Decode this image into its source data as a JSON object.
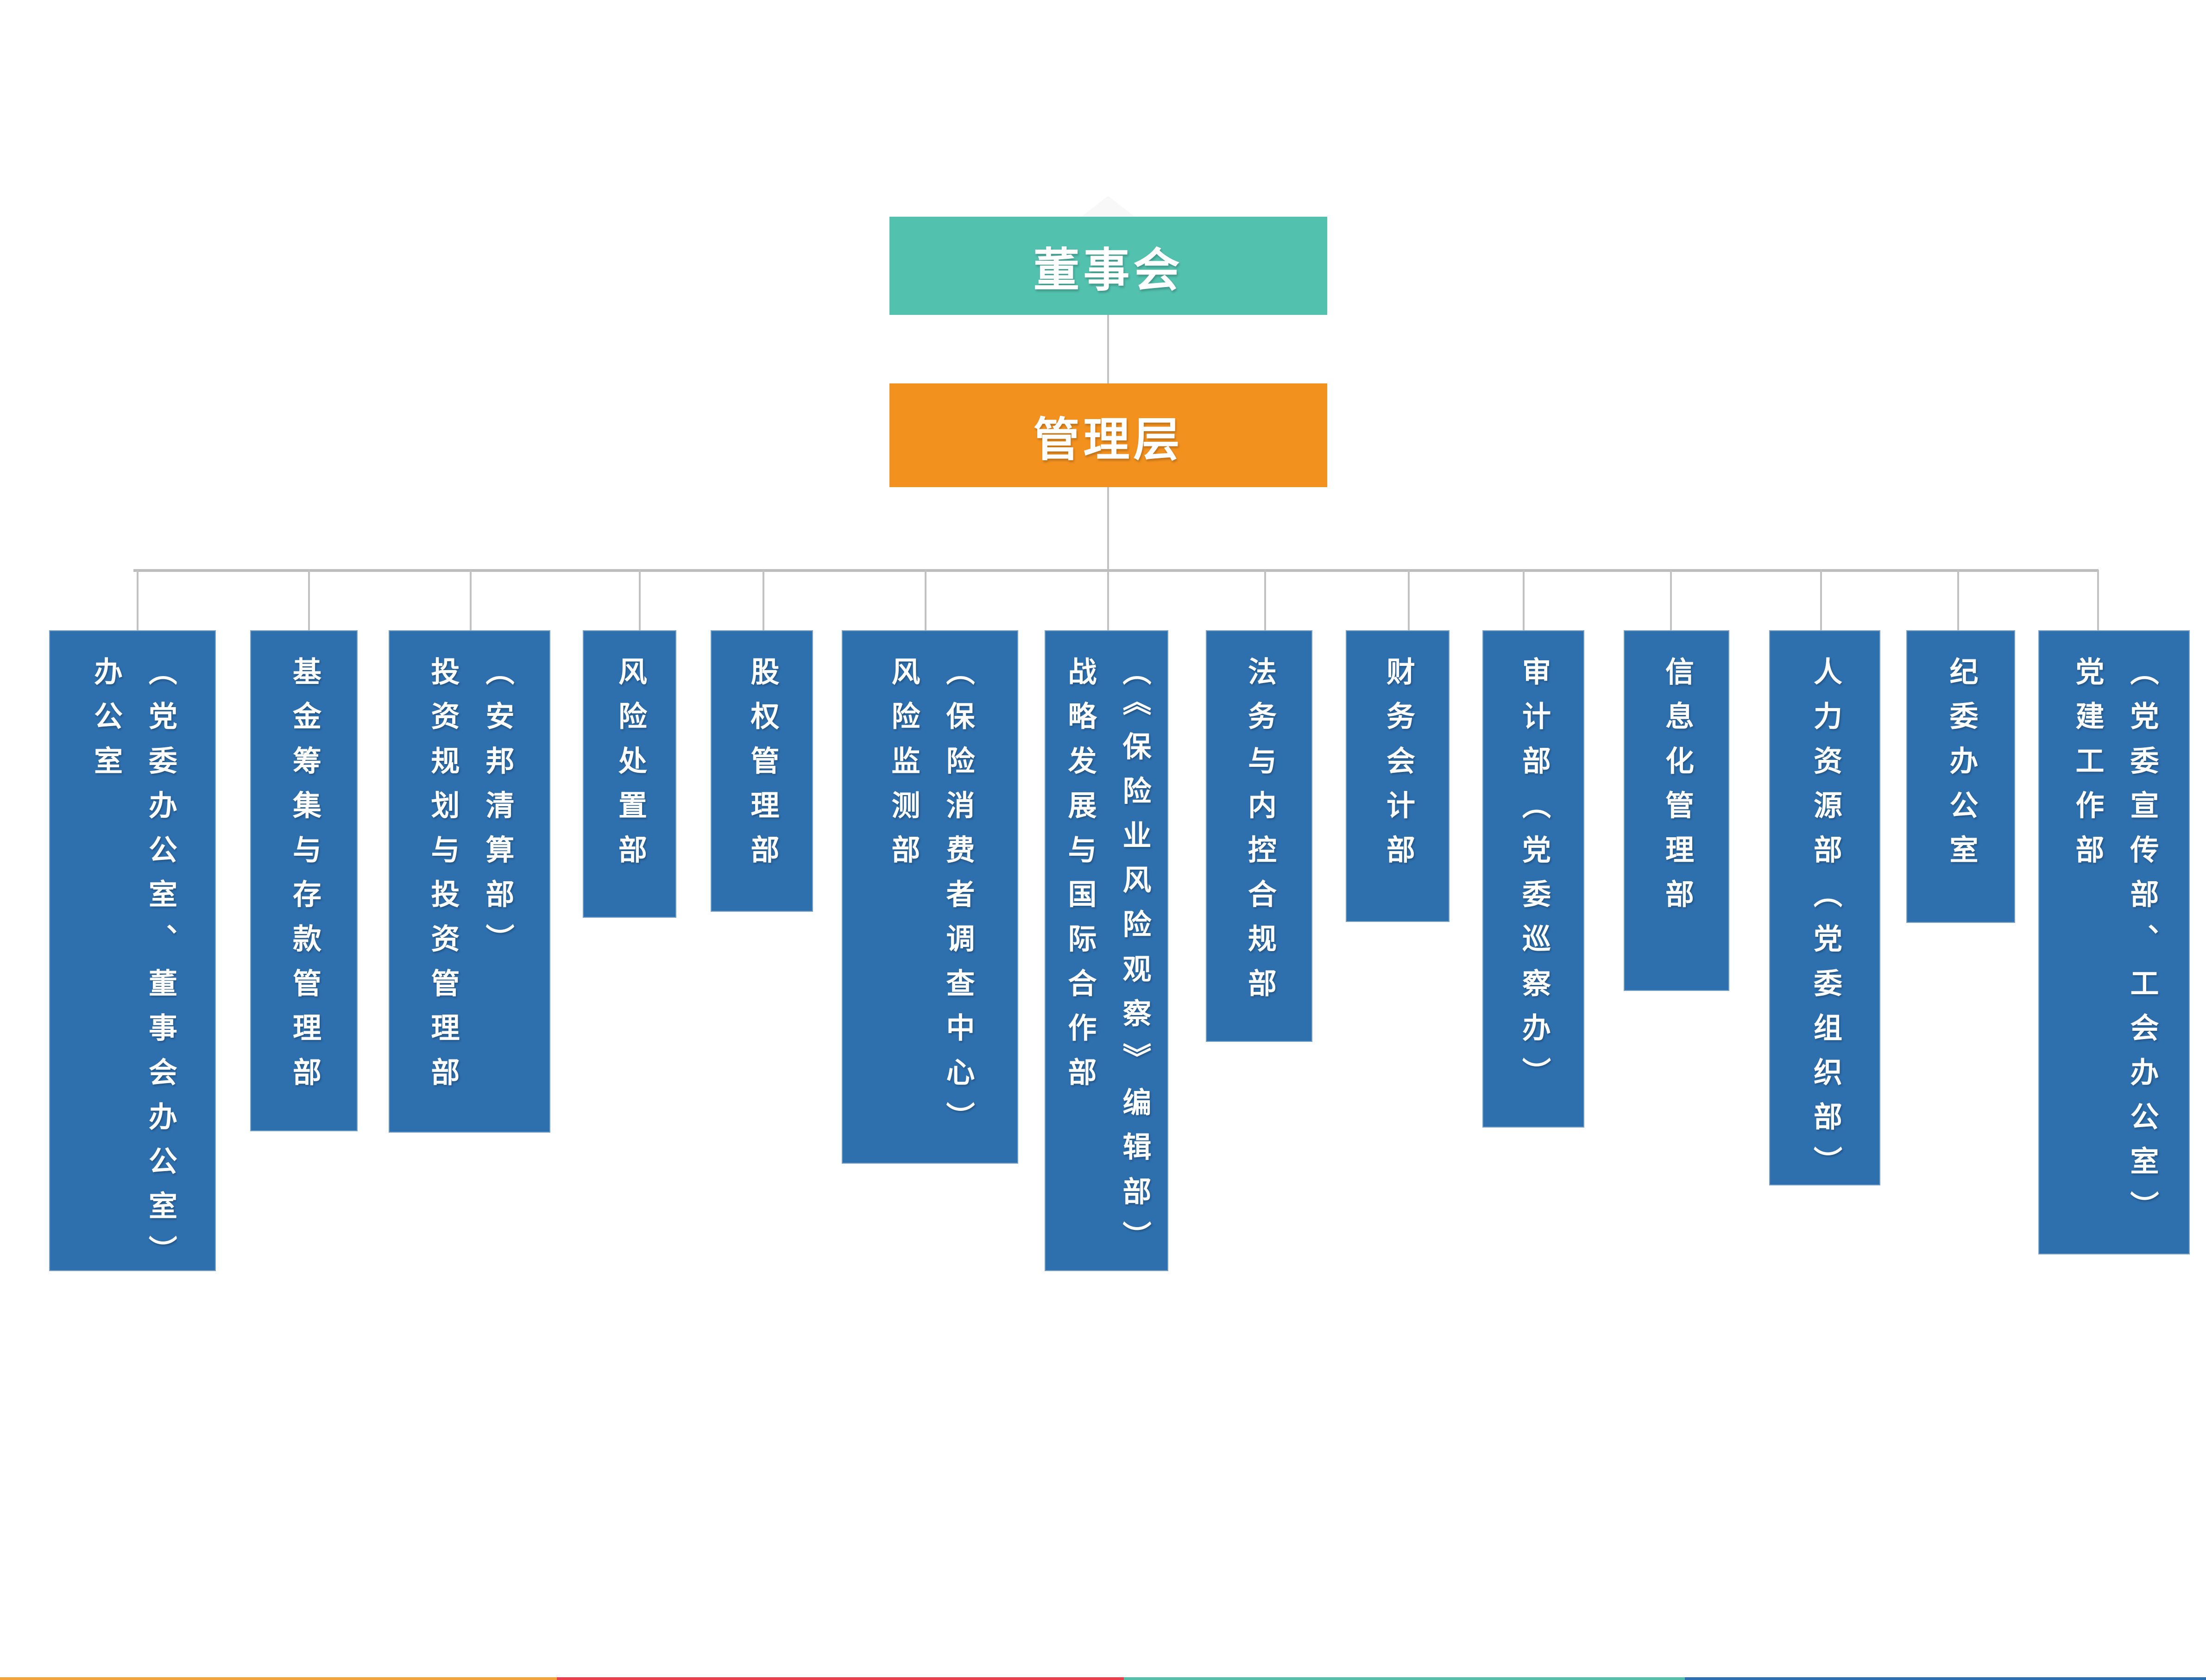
{
  "org_chart": {
    "root": {
      "label": "董事会",
      "color": "#52c1ae"
    },
    "management": {
      "label": "管理层",
      "color": "#f3911f"
    },
    "department_color": "#2e6fae",
    "departments": [
      {
        "name": "办公室",
        "note": "（党委办公室、董事会办公室）"
      },
      {
        "name": "基金筹集与存款管理部",
        "note": ""
      },
      {
        "name": "投资规划与投资管理部",
        "note": "（安邦清算部）"
      },
      {
        "name": "风险处置部",
        "note": ""
      },
      {
        "name": "股权管理部",
        "note": ""
      },
      {
        "name": "风险监测部",
        "note": "（保险消费者调查中心）"
      },
      {
        "name": "战略发展与国际合作部",
        "note": "（《保险业风险观察》编辑部）"
      },
      {
        "name": "法务与内控合规部",
        "note": ""
      },
      {
        "name": "财务会计部",
        "note": ""
      },
      {
        "name": "审计部（党委巡察办）",
        "note": ""
      },
      {
        "name": "信息化管理部",
        "note": ""
      },
      {
        "name": "人力资源部（党委组织部）",
        "note": ""
      },
      {
        "name": "纪委办公室",
        "note": ""
      },
      {
        "name": "党建工作部",
        "note": "（党委宣传部、工会办公室）"
      }
    ],
    "footer_strip": {
      "colors": [
        "#f2a33c",
        "#e8404e",
        "#55bfa9",
        "#2d6fb0"
      ]
    }
  }
}
